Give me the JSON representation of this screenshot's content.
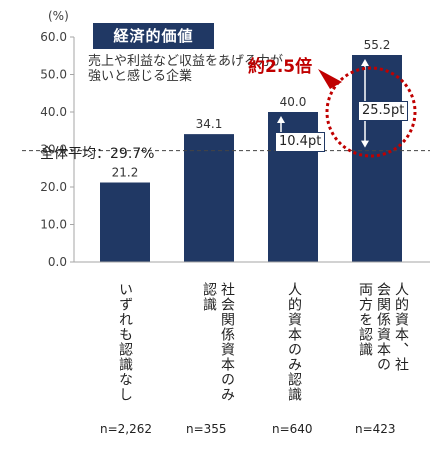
{
  "chart_data": {
    "type": "bar",
    "categories": [
      "いずれも認識なし",
      "社会関係資本のみ認識",
      "人的資本のみ認識",
      "人的資本、社会関係資本の両方を認識"
    ],
    "values": [
      21.2,
      34.1,
      40.0,
      55.2
    ],
    "value_labels": [
      "21.2",
      "34.1",
      "40.0",
      "55.2"
    ],
    "sample_sizes": [
      "n=2,262",
      "n=355",
      "n=640",
      "n=423"
    ],
    "y_unit": "(%)",
    "ylim": [
      0,
      60
    ],
    "y_ticks": [
      "0.0",
      "10.0",
      "20.0",
      "30.0",
      "40.0",
      "50.0",
      "60.0"
    ],
    "grid": false,
    "average": {
      "label": "全体平均：29.7%",
      "value": 29.7
    },
    "badge": "経済的価値",
    "description": "売上や利益など収益をあげる力が強いと感じる企業",
    "annotations": {
      "diff_mid": "10.4pt",
      "diff_top": "25.5pt",
      "multiplier": "約2.5倍"
    },
    "colors": {
      "bar": "#203864",
      "accent": "#c00000",
      "badge_bg": "#203864"
    }
  }
}
